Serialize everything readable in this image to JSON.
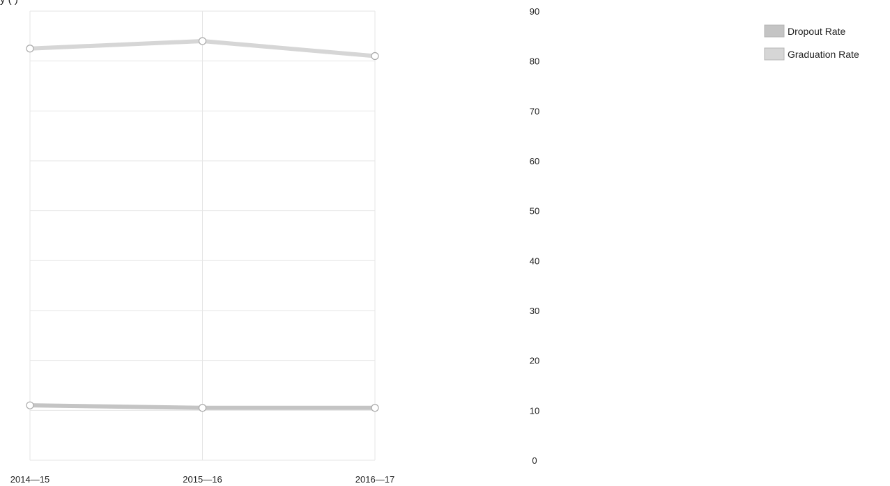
{
  "page": {
    "title_fragment": "y           (                  ) "
  },
  "chart_data": {
    "type": "line",
    "categories": [
      "2014—15",
      "2015—16",
      "2016—17"
    ],
    "series": [
      {
        "name": "Dropout Rate",
        "values": [
          11.0,
          10.5,
          10.5
        ],
        "color": "#c4c4c4"
      },
      {
        "name": "Graduation Rate",
        "values": [
          82.5,
          84.0,
          81.0
        ],
        "color": "#d6d6d6"
      }
    ],
    "ylim": [
      0,
      90
    ],
    "yticks": [
      "90",
      "80",
      "70",
      "60",
      "50",
      "40",
      "30",
      "20",
      "10",
      "0"
    ],
    "grid": true,
    "legend": {
      "position": "top-right"
    }
  }
}
